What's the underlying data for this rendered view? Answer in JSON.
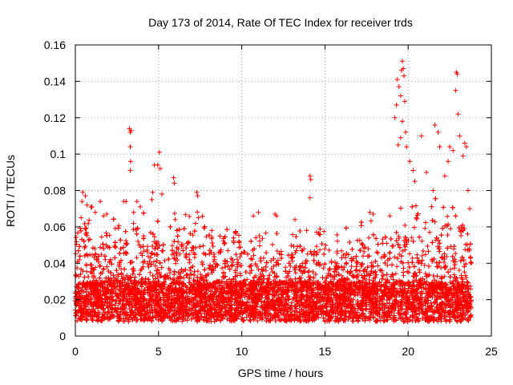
{
  "chart_data": {
    "type": "scatter",
    "title": "Day 173 of 2014, Rate Of TEC Index for receiver trds",
    "xlabel": "GPS time / hours",
    "ylabel": "ROTI / TECUs",
    "xlim": [
      0,
      25
    ],
    "ylim": [
      0,
      0.16
    ],
    "xticks": [
      0,
      5,
      10,
      15,
      20,
      25
    ],
    "yticks": [
      0,
      0.02,
      0.04,
      0.06,
      0.08,
      0.1,
      0.12,
      0.14,
      0.16
    ],
    "ytick_labels": [
      "0",
      "0.02",
      "0.04",
      "0.06",
      "0.08",
      "0.1",
      "0.12",
      "0.14",
      "0.16"
    ],
    "grid": true,
    "marker": "+",
    "point_color": "#ff0000",
    "x_range_of_points": [
      0,
      23.8
    ],
    "notable_points": [
      {
        "x": 0.35,
        "y": 0.065
      },
      {
        "x": 0.4,
        "y": 0.074
      },
      {
        "x": 0.45,
        "y": 0.079
      },
      {
        "x": 0.6,
        "y": 0.077
      },
      {
        "x": 0.7,
        "y": 0.072
      },
      {
        "x": 1.0,
        "y": 0.071
      },
      {
        "x": 1.2,
        "y": 0.068
      },
      {
        "x": 1.5,
        "y": 0.074
      },
      {
        "x": 1.7,
        "y": 0.066
      },
      {
        "x": 2.9,
        "y": 0.074
      },
      {
        "x": 3.05,
        "y": 0.074
      },
      {
        "x": 3.25,
        "y": 0.114
      },
      {
        "x": 3.3,
        "y": 0.112
      },
      {
        "x": 3.35,
        "y": 0.113
      },
      {
        "x": 3.3,
        "y": 0.104
      },
      {
        "x": 3.32,
        "y": 0.096
      },
      {
        "x": 3.3,
        "y": 0.091
      },
      {
        "x": 3.5,
        "y": 0.068
      },
      {
        "x": 3.7,
        "y": 0.074
      },
      {
        "x": 3.9,
        "y": 0.071
      },
      {
        "x": 4.6,
        "y": 0.075
      },
      {
        "x": 4.65,
        "y": 0.079
      },
      {
        "x": 4.75,
        "y": 0.094
      },
      {
        "x": 4.95,
        "y": 0.094
      },
      {
        "x": 5.05,
        "y": 0.101
      },
      {
        "x": 5.1,
        "y": 0.092
      },
      {
        "x": 5.2,
        "y": 0.078
      },
      {
        "x": 5.9,
        "y": 0.087
      },
      {
        "x": 5.95,
        "y": 0.084
      },
      {
        "x": 6.0,
        "y": 0.064
      },
      {
        "x": 6.1,
        "y": 0.058
      },
      {
        "x": 7.3,
        "y": 0.079
      },
      {
        "x": 7.35,
        "y": 0.077
      },
      {
        "x": 7.4,
        "y": 0.065
      },
      {
        "x": 8.2,
        "y": 0.058
      },
      {
        "x": 10.7,
        "y": 0.066
      },
      {
        "x": 11.0,
        "y": 0.068
      },
      {
        "x": 12.0,
        "y": 0.067
      },
      {
        "x": 12.1,
        "y": 0.066
      },
      {
        "x": 13.2,
        "y": 0.064
      },
      {
        "x": 13.9,
        "y": 0.058
      },
      {
        "x": 14.1,
        "y": 0.088
      },
      {
        "x": 14.15,
        "y": 0.086
      },
      {
        "x": 14.1,
        "y": 0.076
      },
      {
        "x": 14.5,
        "y": 0.057
      },
      {
        "x": 17.7,
        "y": 0.068
      },
      {
        "x": 17.9,
        "y": 0.067
      },
      {
        "x": 18.9,
        "y": 0.066
      },
      {
        "x": 19.2,
        "y": 0.12
      },
      {
        "x": 19.3,
        "y": 0.127
      },
      {
        "x": 19.35,
        "y": 0.141
      },
      {
        "x": 19.45,
        "y": 0.137
      },
      {
        "x": 19.55,
        "y": 0.132
      },
      {
        "x": 19.6,
        "y": 0.146
      },
      {
        "x": 19.65,
        "y": 0.151
      },
      {
        "x": 19.7,
        "y": 0.147
      },
      {
        "x": 19.75,
        "y": 0.143
      },
      {
        "x": 19.8,
        "y": 0.129
      },
      {
        "x": 19.65,
        "y": 0.118
      },
      {
        "x": 19.55,
        "y": 0.109
      },
      {
        "x": 19.4,
        "y": 0.105
      },
      {
        "x": 19.85,
        "y": 0.112
      },
      {
        "x": 19.9,
        "y": 0.104
      },
      {
        "x": 20.1,
        "y": 0.096
      },
      {
        "x": 20.3,
        "y": 0.091
      },
      {
        "x": 20.4,
        "y": 0.085
      },
      {
        "x": 20.8,
        "y": 0.11
      },
      {
        "x": 21.1,
        "y": 0.09
      },
      {
        "x": 21.5,
        "y": 0.08
      },
      {
        "x": 21.6,
        "y": 0.116
      },
      {
        "x": 21.8,
        "y": 0.112
      },
      {
        "x": 21.9,
        "y": 0.104
      },
      {
        "x": 22.2,
        "y": 0.088
      },
      {
        "x": 22.4,
        "y": 0.096
      },
      {
        "x": 22.5,
        "y": 0.104
      },
      {
        "x": 22.7,
        "y": 0.102
      },
      {
        "x": 22.9,
        "y": 0.145
      },
      {
        "x": 22.95,
        "y": 0.144
      },
      {
        "x": 22.85,
        "y": 0.135
      },
      {
        "x": 23.0,
        "y": 0.122
      },
      {
        "x": 23.1,
        "y": 0.11
      },
      {
        "x": 23.3,
        "y": 0.099
      },
      {
        "x": 23.4,
        "y": 0.106
      },
      {
        "x": 23.5,
        "y": 0.104
      },
      {
        "x": 23.6,
        "y": 0.08
      },
      {
        "x": 23.7,
        "y": 0.07
      }
    ]
  }
}
